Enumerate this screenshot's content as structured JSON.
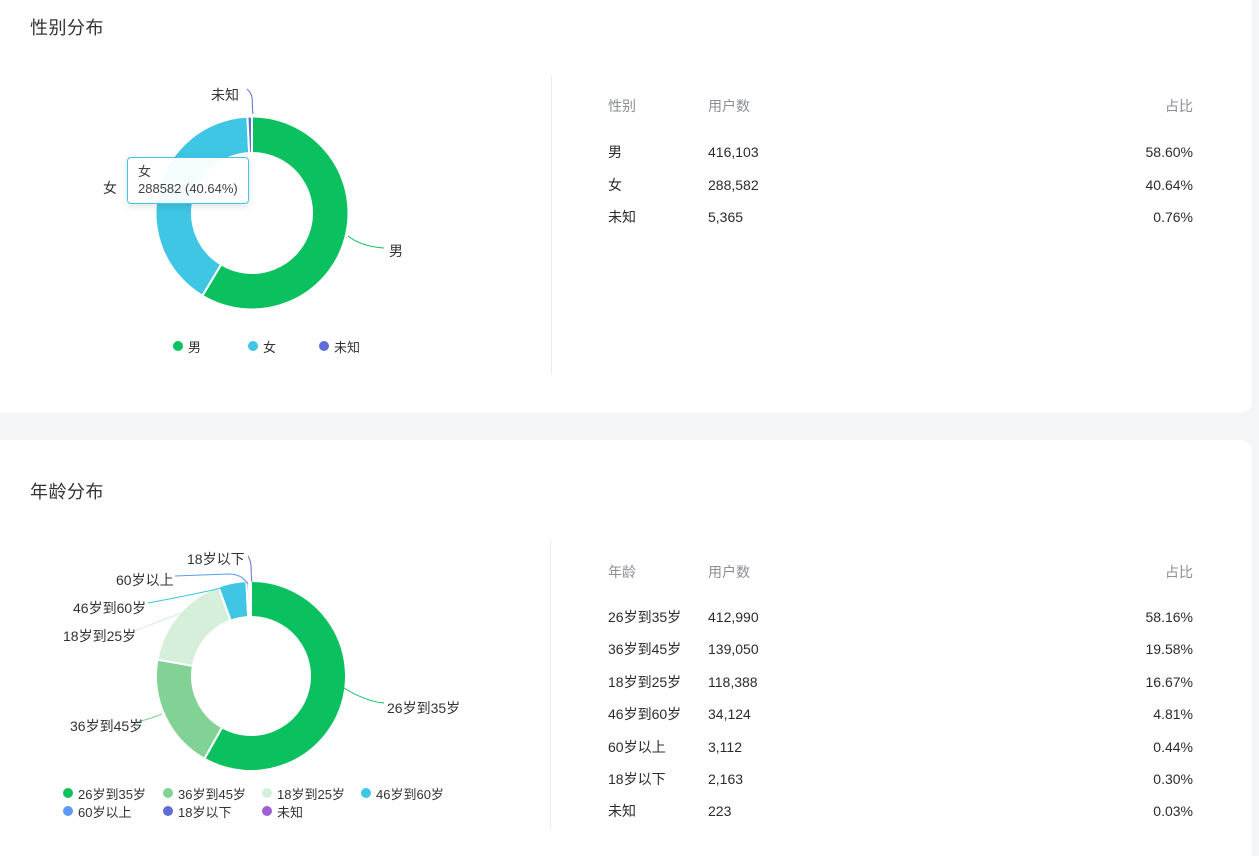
{
  "page": {
    "background": "#f4f5f7",
    "card_background": "#ffffff",
    "divider_color": "#ececee"
  },
  "sections": [
    {
      "title": "性别分布",
      "table": {
        "headers": [
          "性别",
          "用户数",
          "占比"
        ],
        "rows": [
          {
            "label": "男",
            "users": "416,103",
            "percent": "58.60%"
          },
          {
            "label": "女",
            "users": "288,582",
            "percent": "40.64%"
          },
          {
            "label": "未知",
            "users": "5,365",
            "percent": "0.76%"
          }
        ]
      },
      "tooltip": {
        "title": "女",
        "value_text": "288582 (40.64%)",
        "border_color": "#3EC6E4"
      }
    },
    {
      "title": "年龄分布",
      "table": {
        "headers": [
          "年龄",
          "用户数",
          "占比"
        ],
        "rows": [
          {
            "label": "26岁到35岁",
            "users": "412,990",
            "percent": "58.16%"
          },
          {
            "label": "36岁到45岁",
            "users": "139,050",
            "percent": "19.58%"
          },
          {
            "label": "18岁到25岁",
            "users": "118,388",
            "percent": "16.67%"
          },
          {
            "label": "46岁到60岁",
            "users": "34,124",
            "percent": "4.81%"
          },
          {
            "label": "60岁以上",
            "users": "3,112",
            "percent": "0.44%"
          },
          {
            "label": "18岁以下",
            "users": "2,163",
            "percent": "0.30%"
          },
          {
            "label": "未知",
            "users": "223",
            "percent": "0.03%"
          }
        ]
      }
    }
  ],
  "chart_data": [
    {
      "type": "pie",
      "title": "性别分布",
      "donut": true,
      "legend_position": "bottom",
      "series": [
        {
          "name": "男",
          "value": 416103,
          "percent": 58.6,
          "color": "#0BC15F"
        },
        {
          "name": "女",
          "value": 288582,
          "percent": 40.64,
          "color": "#3EC6E4"
        },
        {
          "name": "未知",
          "value": 5365,
          "percent": 0.76,
          "color": "#5F6ED6"
        }
      ]
    },
    {
      "type": "pie",
      "title": "年龄分布",
      "donut": true,
      "legend_position": "bottom",
      "series": [
        {
          "name": "26岁到35岁",
          "value": 412990,
          "percent": 58.16,
          "color": "#0BC15F"
        },
        {
          "name": "36岁到45岁",
          "value": 139050,
          "percent": 19.58,
          "color": "#82D296"
        },
        {
          "name": "18岁到25岁",
          "value": 118388,
          "percent": 16.67,
          "color": "#D6EFDB"
        },
        {
          "name": "46岁到60岁",
          "value": 34124,
          "percent": 4.81,
          "color": "#3EC6E4"
        },
        {
          "name": "60岁以上",
          "value": 3112,
          "percent": 0.44,
          "color": "#5A9BF8"
        },
        {
          "name": "18岁以下",
          "value": 2163,
          "percent": 0.3,
          "color": "#5F6ED6"
        },
        {
          "name": "未知",
          "value": 223,
          "percent": 0.03,
          "color": "#A05FD4"
        }
      ]
    }
  ]
}
